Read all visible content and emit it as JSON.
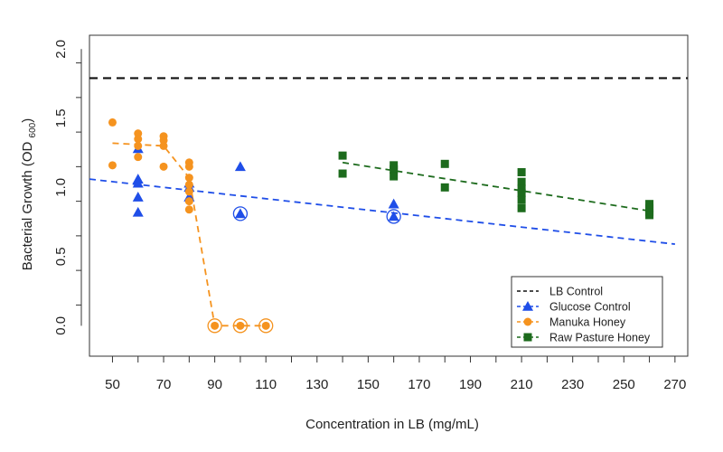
{
  "chart_data": {
    "type": "scatter",
    "xlabel": "Concentration in LB (mg/mL)",
    "ylabel": "Bacterial Growth (OD ",
    "ylabel_sub": "600",
    "ylabel_end": ")",
    "xlim": [
      41,
      275
    ],
    "ylim": [
      -0.22,
      2.1
    ],
    "xticks": [
      50,
      70,
      90,
      110,
      130,
      150,
      170,
      190,
      210,
      230,
      250,
      270
    ],
    "yticks": [
      0.0,
      0.5,
      1.0,
      1.5,
      2.0
    ],
    "ytick_labels": [
      "0.0",
      "0.5",
      "1.0",
      "1.5",
      "2.0"
    ],
    "legend_position": "bottom-right",
    "series": [
      {
        "name": "LB Control",
        "color": "#111111",
        "marker": "none",
        "line": [
          [
            41,
            1.79
          ],
          [
            275,
            1.79
          ]
        ],
        "points": [],
        "circled": []
      },
      {
        "name": "Glucose Control",
        "color": "#1f4ee8",
        "marker": "triangle",
        "line": [
          [
            41,
            1.06
          ],
          [
            270,
            0.59
          ]
        ],
        "points": [
          [
            60,
            1.28
          ],
          [
            60,
            1.06
          ],
          [
            60,
            1.03
          ],
          [
            60,
            0.93
          ],
          [
            60,
            0.82
          ],
          [
            80,
            1.03
          ],
          [
            80,
            1.0
          ],
          [
            80,
            0.93
          ],
          [
            100,
            1.15
          ],
          [
            100,
            0.81
          ],
          [
            160,
            0.88
          ],
          [
            160,
            0.79
          ]
        ],
        "circled": [
          [
            100,
            0.81
          ],
          [
            160,
            0.79
          ]
        ]
      },
      {
        "name": "Manuka Honey",
        "color": "#f5931f",
        "marker": "circle",
        "line": [
          [
            50,
            1.32
          ],
          [
            70,
            1.3
          ],
          [
            80,
            1.07
          ],
          [
            90,
            0.0
          ],
          [
            110,
            0.0
          ]
        ],
        "points": [
          [
            50,
            1.47
          ],
          [
            50,
            1.16
          ],
          [
            60,
            1.39
          ],
          [
            60,
            1.35
          ],
          [
            60,
            1.3
          ],
          [
            60,
            1.22
          ],
          [
            70,
            1.37
          ],
          [
            70,
            1.34
          ],
          [
            70,
            1.3
          ],
          [
            70,
            1.15
          ],
          [
            80,
            1.18
          ],
          [
            80,
            1.15
          ],
          [
            80,
            1.07
          ],
          [
            80,
            1.02
          ],
          [
            80,
            0.97
          ],
          [
            80,
            0.9
          ],
          [
            80,
            0.84
          ],
          [
            90,
            0.0
          ],
          [
            100,
            0.0
          ],
          [
            110,
            0.0
          ]
        ],
        "circled": [
          [
            90,
            0.0
          ],
          [
            100,
            0.0
          ],
          [
            110,
            0.0
          ]
        ]
      },
      {
        "name": "Raw Pasture Honey",
        "color": "#1d6b1d",
        "marker": "square",
        "line": [
          [
            140,
            1.18
          ],
          [
            260,
            0.83
          ]
        ],
        "points": [
          [
            140,
            1.23
          ],
          [
            140,
            1.1
          ],
          [
            160,
            1.16
          ],
          [
            160,
            1.13
          ],
          [
            160,
            1.08
          ],
          [
            180,
            1.17
          ],
          [
            180,
            1.0
          ],
          [
            210,
            1.11
          ],
          [
            210,
            1.04
          ],
          [
            210,
            0.99
          ],
          [
            210,
            0.96
          ],
          [
            210,
            0.91
          ],
          [
            210,
            0.85
          ],
          [
            260,
            0.88
          ],
          [
            260,
            0.85
          ],
          [
            260,
            0.82
          ],
          [
            260,
            0.8
          ]
        ],
        "circled": []
      }
    ]
  }
}
